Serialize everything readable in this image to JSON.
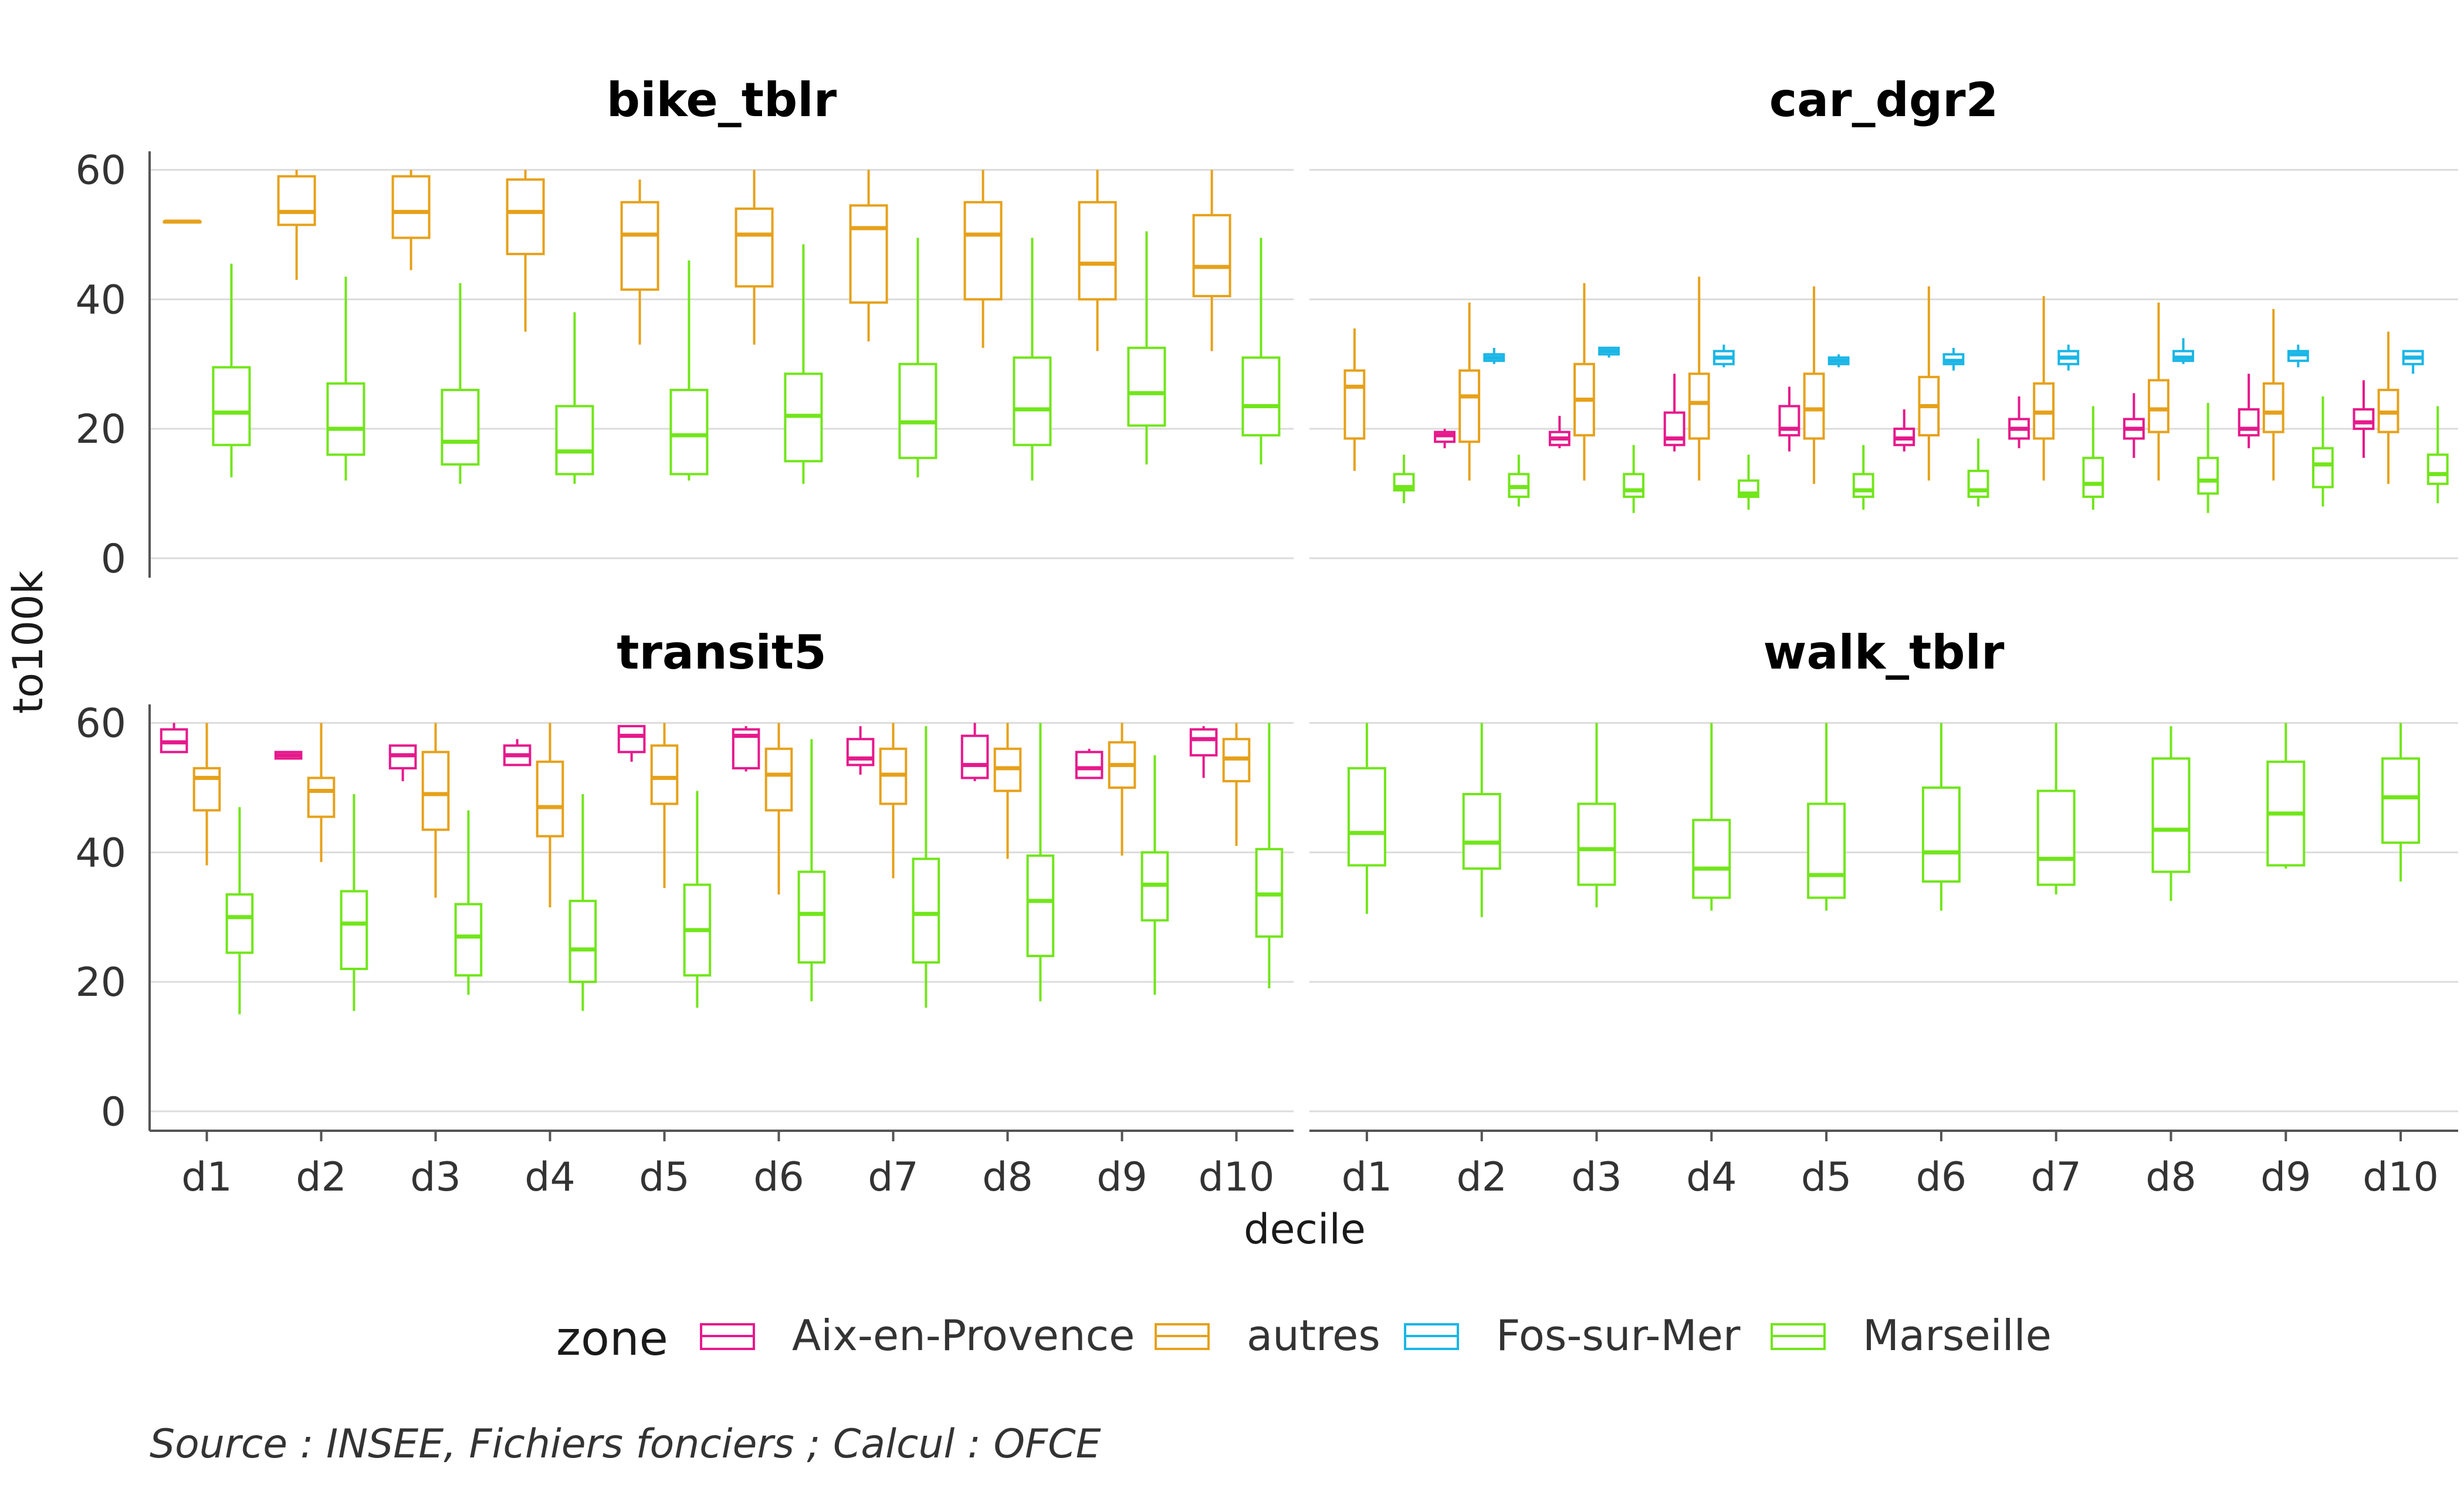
{
  "chart_data": {
    "type": "boxplot",
    "facet_layout": "2x2",
    "x_label": "decile",
    "y_label": "to100k",
    "categories": [
      "d1",
      "d2",
      "d3",
      "d4",
      "d5",
      "d6",
      "d7",
      "d8",
      "d9",
      "d10"
    ],
    "y_ticks": [
      "0",
      "20",
      "40",
      "60"
    ],
    "y_range": [
      0,
      60
    ],
    "grid": "horizontal",
    "legend": {
      "title": "zone",
      "position": "bottom",
      "entries": [
        {
          "name": "Aix-en-Provence",
          "color": "#e6198c"
        },
        {
          "name": "autres",
          "color": "#e6a11a"
        },
        {
          "name": "Fos-sur-Mer",
          "color": "#1ab6e6"
        },
        {
          "name": "Marseille",
          "color": "#71e61a"
        }
      ]
    },
    "caption": "Source : INSEE, Fichiers fonciers ; Calcul : OFCE",
    "panels": [
      {
        "title": "bike_tblr",
        "series": [
          {
            "zone": "autres",
            "boxes": [
              [
                52,
                52,
                52,
                52,
                52
              ],
              [
                43,
                51.5,
                53.5,
                59,
                60
              ],
              [
                44.5,
                49.5,
                53.5,
                59,
                60
              ],
              [
                35,
                47,
                53.5,
                58.5,
                60
              ],
              [
                33,
                41.5,
                50,
                55,
                58.5
              ],
              [
                33,
                42,
                50,
                54,
                60
              ],
              [
                33.5,
                39.5,
                51,
                54.5,
                60
              ],
              [
                32.5,
                40,
                50,
                55,
                60
              ],
              [
                32,
                40,
                45.5,
                55,
                60
              ],
              [
                32,
                40.5,
                45,
                53,
                60
              ]
            ]
          },
          {
            "zone": "Marseille",
            "boxes": [
              [
                12.5,
                17.5,
                22.5,
                29.5,
                45.5
              ],
              [
                12,
                16,
                20,
                27,
                43.5
              ],
              [
                11.5,
                14.5,
                18,
                26,
                42.5
              ],
              [
                11.5,
                13,
                16.5,
                23.5,
                38
              ],
              [
                12,
                13,
                19,
                26,
                46
              ],
              [
                11.5,
                15,
                22,
                28.5,
                48.5
              ],
              [
                12.5,
                15.5,
                21,
                30,
                49.5
              ],
              [
                12,
                17.5,
                23,
                31,
                49.5
              ],
              [
                14.5,
                20.5,
                25.5,
                32.5,
                50.5
              ],
              [
                14.5,
                19,
                23.5,
                31,
                49.5
              ]
            ]
          }
        ]
      },
      {
        "title": "car_dgr2",
        "series": [
          {
            "zone": "Aix-en-Provence",
            "boxes": [
              null,
              [
                17,
                18,
                19,
                19.5,
                20
              ],
              [
                17,
                17.5,
                18.5,
                19.5,
                22
              ],
              [
                16.5,
                17.5,
                18.5,
                22.5,
                28.5
              ],
              [
                16.5,
                19,
                20,
                23.5,
                26.5
              ],
              [
                16.5,
                17.5,
                18.5,
                20,
                23
              ],
              [
                17,
                18.5,
                20,
                21.5,
                25
              ],
              [
                15.5,
                18.5,
                20,
                21.5,
                25.5
              ],
              [
                17,
                19,
                20,
                23,
                28.5
              ],
              [
                15.5,
                20,
                21,
                23,
                27.5
              ]
            ]
          },
          {
            "zone": "autres",
            "boxes": [
              [
                13.5,
                18.5,
                26.5,
                29,
                35.5
              ],
              [
                12,
                18,
                25,
                29,
                39.5
              ],
              [
                12,
                19,
                24.5,
                30,
                42.5
              ],
              [
                12,
                18.5,
                24,
                28.5,
                43.5
              ],
              [
                11.5,
                18.5,
                23,
                28.5,
                42
              ],
              [
                12,
                19,
                23.5,
                28,
                42
              ],
              [
                12,
                18.5,
                22.5,
                27,
                40.5
              ],
              [
                12,
                19.5,
                23,
                27.5,
                39.5
              ],
              [
                12,
                19.5,
                22.5,
                27,
                38.5
              ],
              [
                11.5,
                19.5,
                22.5,
                26,
                35
              ]
            ]
          },
          {
            "zone": "Fos-sur-Mer",
            "boxes": [
              null,
              [
                30,
                30.5,
                31,
                31.5,
                32.5
              ],
              [
                31,
                31.5,
                32,
                32.5,
                32.5
              ],
              [
                29.5,
                30,
                31,
                32,
                33
              ],
              [
                29.5,
                30,
                30.5,
                31,
                31.5
              ],
              [
                29,
                30,
                30.5,
                31.5,
                32.5
              ],
              [
                29,
                30,
                31,
                32,
                33
              ],
              [
                30,
                30.5,
                31,
                32,
                34
              ],
              [
                29.5,
                30.5,
                31.5,
                32,
                33
              ],
              [
                28.5,
                30,
                31,
                32,
                32
              ]
            ]
          },
          {
            "zone": "Marseille",
            "boxes": [
              [
                8.5,
                10.5,
                11,
                13,
                16
              ],
              [
                8,
                9.5,
                11,
                13,
                16
              ],
              [
                7,
                9.5,
                10.5,
                13,
                17.5
              ],
              [
                7.5,
                9.5,
                10,
                12,
                16
              ],
              [
                7.5,
                9.5,
                10.5,
                13,
                17.5
              ],
              [
                8,
                9.5,
                10.5,
                13.5,
                18.5
              ],
              [
                7.5,
                9.5,
                11.5,
                15.5,
                23.5
              ],
              [
                7,
                10,
                12,
                15.5,
                24
              ],
              [
                8,
                11,
                14.5,
                17,
                25
              ],
              [
                8.5,
                11.5,
                13,
                16,
                23.5
              ]
            ]
          }
        ]
      },
      {
        "title": "transit5",
        "series": [
          {
            "zone": "Aix-en-Provence",
            "boxes": [
              [
                55.5,
                55.5,
                57,
                59,
                60
              ],
              [
                54.5,
                54.5,
                55,
                55.5,
                55.5
              ],
              [
                51,
                53,
                55,
                56.5,
                56.5
              ],
              [
                53.5,
                53.5,
                55,
                56.5,
                57.5
              ],
              [
                54,
                55.5,
                58,
                59.5,
                59.5
              ],
              [
                52.5,
                53,
                58,
                59,
                59.5
              ],
              [
                52,
                53.5,
                54.5,
                57.5,
                59.5
              ],
              [
                51,
                51.5,
                53.5,
                58,
                60
              ],
              [
                51.5,
                51.5,
                53,
                55.5,
                56
              ],
              [
                51.5,
                55,
                57.5,
                59,
                59.5
              ]
            ]
          },
          {
            "zone": "autres",
            "boxes": [
              [
                38,
                46.5,
                51.5,
                53,
                60
              ],
              [
                38.5,
                45.5,
                49.5,
                51.5,
                60
              ],
              [
                33,
                43.5,
                49,
                55.5,
                60
              ],
              [
                31.5,
                42.5,
                47,
                54,
                60
              ],
              [
                34.5,
                47.5,
                51.5,
                56.5,
                60
              ],
              [
                33.5,
                46.5,
                52,
                56,
                60
              ],
              [
                36,
                47.5,
                52,
                56,
                60
              ],
              [
                39,
                49.5,
                53,
                56,
                60
              ],
              [
                39.5,
                50,
                53.5,
                57,
                60
              ],
              [
                41,
                51,
                54.5,
                57.5,
                60
              ]
            ]
          },
          {
            "zone": "Marseille",
            "boxes": [
              [
                15,
                24.5,
                30,
                33.5,
                47
              ],
              [
                15.5,
                22,
                29,
                34,
                49
              ],
              [
                18,
                21,
                27,
                32,
                46.5
              ],
              [
                15.5,
                20,
                25,
                32.5,
                49
              ],
              [
                16,
                21,
                28,
                35,
                49.5
              ],
              [
                17,
                23,
                30.5,
                37,
                57.5
              ],
              [
                16,
                23,
                30.5,
                39,
                59.5
              ],
              [
                17,
                24,
                32.5,
                39.5,
                60
              ],
              [
                18,
                29.5,
                35,
                40,
                55
              ],
              [
                19,
                27,
                33.5,
                40.5,
                60
              ]
            ]
          }
        ]
      },
      {
        "title": "walk_tblr",
        "series": [
          {
            "zone": "Marseille",
            "boxes": [
              [
                30.5,
                38,
                43,
                53,
                60
              ],
              [
                30,
                37.5,
                41.5,
                49,
                60
              ],
              [
                31.5,
                35,
                40.5,
                47.5,
                60
              ],
              [
                31,
                33,
                37.5,
                45,
                60
              ],
              [
                31,
                33,
                36.5,
                47.5,
                60
              ],
              [
                31,
                35.5,
                40,
                50,
                60
              ],
              [
                33.5,
                35,
                39,
                49.5,
                60
              ],
              [
                32.5,
                37,
                43.5,
                54.5,
                59.5
              ],
              [
                37.5,
                38,
                46,
                54,
                60
              ],
              [
                35.5,
                41.5,
                48.5,
                54.5,
                60
              ]
            ]
          }
        ]
      }
    ]
  }
}
